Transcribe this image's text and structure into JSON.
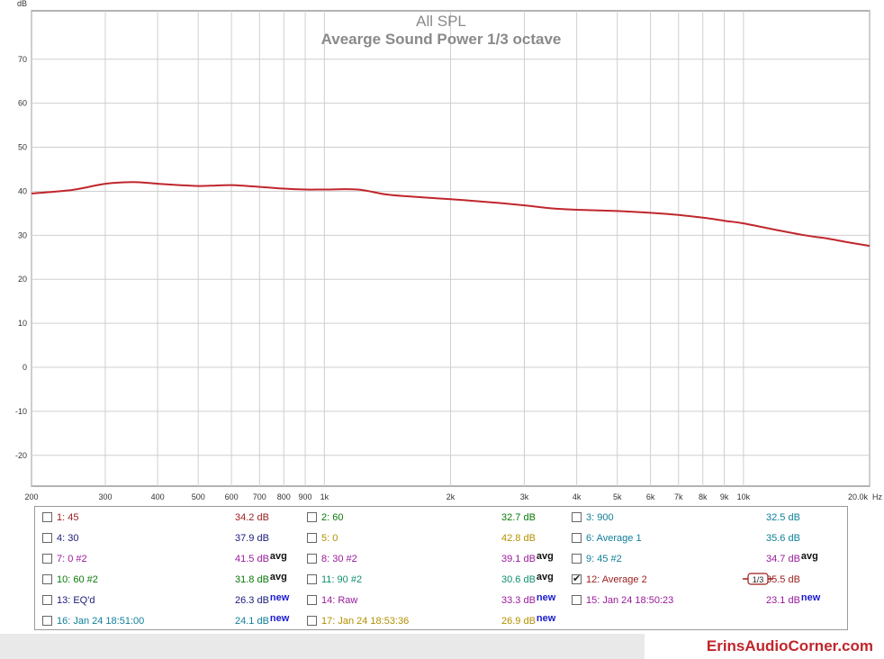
{
  "chart_data": {
    "type": "line",
    "title": "All SPL",
    "subtitle": "Avearge Sound Power 1/3 octave",
    "ylabel": "dB",
    "xunit": "Hz",
    "xscale": "log",
    "xlim": [
      200,
      20000
    ],
    "ylim": [
      -27,
      81
    ],
    "yticks": [
      -20,
      -10,
      0,
      10,
      20,
      30,
      40,
      50,
      60,
      70
    ],
    "xticks": [
      {
        "v": 200,
        "label": "200"
      },
      {
        "v": 300,
        "label": "300"
      },
      {
        "v": 400,
        "label": "400"
      },
      {
        "v": 500,
        "label": "500"
      },
      {
        "v": 600,
        "label": "600"
      },
      {
        "v": 700,
        "label": "700"
      },
      {
        "v": 800,
        "label": "800"
      },
      {
        "v": 900,
        "label": "900"
      },
      {
        "v": 1000,
        "label": "1k"
      },
      {
        "v": 2000,
        "label": "2k"
      },
      {
        "v": 3000,
        "label": "3k"
      },
      {
        "v": 4000,
        "label": "4k"
      },
      {
        "v": 5000,
        "label": "5k"
      },
      {
        "v": 6000,
        "label": "6k"
      },
      {
        "v": 7000,
        "label": "7k"
      },
      {
        "v": 8000,
        "label": "8k"
      },
      {
        "v": 9000,
        "label": "9k"
      },
      {
        "v": 10000,
        "label": "10k"
      },
      {
        "v": 20000,
        "label": "20.0k"
      }
    ],
    "grid": true,
    "series": [
      {
        "name": "12: Average 2",
        "color": "#c0262c",
        "x": [
          200,
          250,
          300,
          350,
          400,
          450,
          500,
          550,
          600,
          700,
          800,
          900,
          1000,
          1200,
          1400,
          1600,
          2000,
          2500,
          3000,
          3500,
          4000,
          5000,
          6000,
          7000,
          8000,
          9000,
          10000,
          12000,
          14000,
          16000,
          18000,
          20000
        ],
        "y": [
          39.5,
          40.3,
          41.7,
          42.1,
          41.7,
          41.4,
          41.2,
          41.3,
          41.4,
          41.0,
          40.6,
          40.4,
          40.4,
          40.4,
          39.3,
          38.8,
          38.2,
          37.5,
          36.8,
          36.1,
          35.8,
          35.5,
          35.1,
          34.6,
          34.0,
          33.3,
          32.7,
          31.2,
          30.0,
          29.2,
          28.3,
          27.6
        ]
      }
    ]
  },
  "legend": {
    "items": [
      {
        "label": "1: 45",
        "value": "34.2 dB",
        "tag": "",
        "checked": false,
        "color": "#9b1c1c",
        "valcolor": "#9b1c1c"
      },
      {
        "label": "2: 60",
        "value": "32.7 dB",
        "tag": "",
        "checked": false,
        "color": "#0a7a0a",
        "valcolor": "#0a7a0a"
      },
      {
        "label": "3: 900",
        "value": "32.5 dB",
        "tag": "",
        "checked": false,
        "color": "#0f7f99",
        "valcolor": "#0f7f99"
      },
      {
        "label": "4: 30",
        "value": "37.9 dB",
        "tag": "",
        "checked": false,
        "color": "#1a1a7a",
        "valcolor": "#1a1a7a"
      },
      {
        "label": "5: 0",
        "value": "42.8 dB",
        "tag": "",
        "checked": false,
        "color": "#b38f00",
        "valcolor": "#b38f00"
      },
      {
        "label": "6: Average 1",
        "value": "35.6 dB",
        "tag": "",
        "checked": false,
        "color": "#0f7f99",
        "valcolor": "#0f7f99"
      },
      {
        "label": "7: 0 #2",
        "value": "41.5 dB",
        "tag": "avg",
        "checked": false,
        "color": "#9a1a9a",
        "valcolor": "#9a1a9a"
      },
      {
        "label": "8: 30 #2",
        "value": "39.1 dB",
        "tag": "avg",
        "checked": false,
        "color": "#9a1a9a",
        "valcolor": "#9a1a9a"
      },
      {
        "label": "9: 45 #2",
        "value": "34.7 dB",
        "tag": "avg",
        "checked": false,
        "color": "#0f7f99",
        "valcolor": "#9a1a9a"
      },
      {
        "label": "10: 60 #2",
        "value": "31.8 dB",
        "tag": "avg",
        "checked": false,
        "color": "#0a7a0a",
        "valcolor": "#0a7a0a"
      },
      {
        "label": "11: 90 #2",
        "value": "30.6 dB",
        "tag": "avg",
        "checked": false,
        "color": "#0f8f6f",
        "valcolor": "#0f8f6f"
      },
      {
        "label": "12: Average 2",
        "value": "35.5 dB",
        "tag": "",
        "checked": true,
        "color": "#9b1c1c",
        "valcolor": "#9b1c1c"
      },
      {
        "label": "13: EQ'd",
        "value": "26.3 dB",
        "tag": "new",
        "checked": false,
        "color": "#1a1a7a",
        "valcolor": "#1a1a7a"
      },
      {
        "label": "14: Raw",
        "value": "33.3 dB",
        "tag": "new",
        "checked": false,
        "color": "#9a1a9a",
        "valcolor": "#9a1a9a"
      },
      {
        "label": "15: Jan 24 18:50:23",
        "value": "23.1 dB",
        "tag": "new",
        "checked": false,
        "color": "#9a1a9a",
        "valcolor": "#9a1a9a"
      },
      {
        "label": "16: Jan 24 18:51:00",
        "value": "24.1 dB",
        "tag": "new",
        "checked": false,
        "color": "#0f7f99",
        "valcolor": "#0f7f99"
      },
      {
        "label": "17: Jan 24 18:53:36",
        "value": "26.9 dB",
        "tag": "new",
        "checked": false,
        "color": "#b38f00",
        "valcolor": "#b38f00"
      }
    ],
    "smoothing_label": "1/3"
  },
  "footer": {
    "brand": "ErinsAudioCorner.com"
  }
}
